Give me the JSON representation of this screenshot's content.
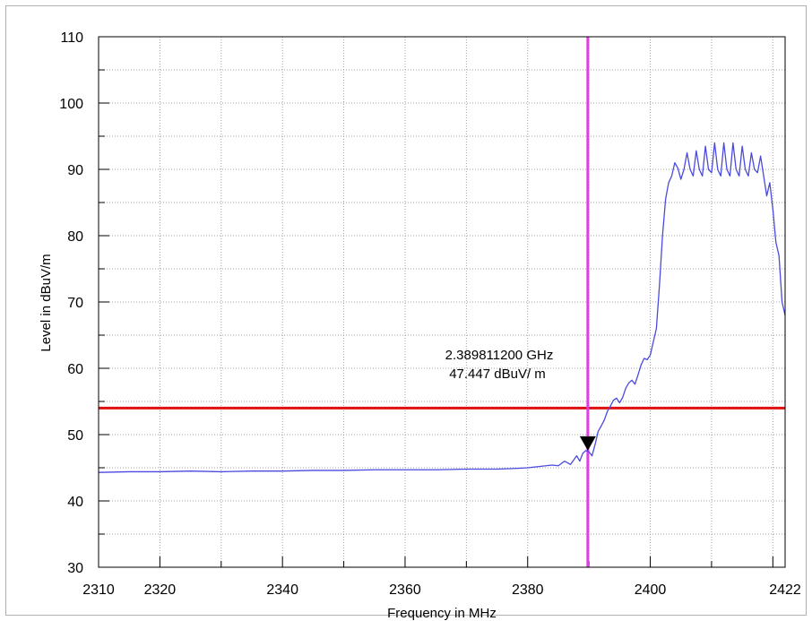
{
  "chart_data": {
    "type": "line",
    "title": "",
    "xlabel": "Frequency in MHz",
    "ylabel": "Level in dBuV/m",
    "xlim": [
      2310,
      2422
    ],
    "ylim": [
      30,
      110
    ],
    "grid": true,
    "x_ticks": [
      2310,
      2320,
      2340,
      2360,
      2380,
      2400,
      2422
    ],
    "x_tick_labels": [
      "2310",
      "2320",
      "2340",
      "2360",
      "2380",
      "2400",
      "2422"
    ],
    "y_ticks": [
      30,
      40,
      50,
      60,
      70,
      80,
      90,
      100,
      110
    ],
    "y_tick_labels": [
      "30",
      "40",
      "50",
      "60",
      "70",
      "80",
      "90",
      "100",
      "110"
    ],
    "limit_line": {
      "y": 54,
      "color": "#e01010"
    },
    "marker_line": {
      "x": 2389.8112,
      "color": "#e040e0"
    },
    "marker": {
      "x": 2389.8112,
      "y": 47.447,
      "label_line1": "2.389811200 GHz",
      "label_line2": "47.447 dBuV/ m"
    },
    "series": [
      {
        "color": "#4a4ae0",
        "x": [
          2310,
          2315,
          2320,
          2325,
          2330,
          2335,
          2340,
          2345,
          2350,
          2355,
          2360,
          2365,
          2370,
          2375,
          2378,
          2380,
          2382,
          2384,
          2385,
          2386,
          2387,
          2388,
          2388.5,
          2389,
          2389.5,
          2390,
          2390.5,
          2391,
          2391.5,
          2392,
          2392.5,
          2393,
          2393.5,
          2394,
          2394.5,
          2395,
          2395.5,
          2396,
          2396.5,
          2397,
          2397.5,
          2398,
          2398.5,
          2399,
          2399.5,
          2400,
          2400.5,
          2401,
          2401.5,
          2402,
          2402.5,
          2403,
          2403.5,
          2404,
          2404.5,
          2405,
          2405.5,
          2406,
          2406.5,
          2407,
          2407.5,
          2408,
          2408.5,
          2409,
          2409.5,
          2410,
          2410.5,
          2411,
          2411.5,
          2412,
          2412.5,
          2413,
          2413.5,
          2414,
          2414.5,
          2415,
          2415.5,
          2416,
          2416.5,
          2417,
          2417.5,
          2418,
          2418.5,
          2419,
          2419.5,
          2420,
          2420.5,
          2421,
          2421.5,
          2422
        ],
        "y": [
          44.3,
          44.4,
          44.4,
          44.5,
          44.4,
          44.5,
          44.5,
          44.6,
          44.6,
          44.7,
          44.7,
          44.7,
          44.8,
          44.8,
          44.9,
          45.0,
          45.2,
          45.4,
          45.3,
          46.0,
          45.5,
          46.8,
          46.0,
          47.2,
          47.6,
          47.4,
          46.8,
          48.5,
          50.5,
          51.3,
          52.2,
          53.5,
          54.3,
          55.2,
          55.5,
          54.8,
          55.6,
          57.0,
          57.8,
          58.2,
          57.6,
          59.0,
          60.5,
          61.5,
          61.3,
          62.0,
          64.0,
          66.0,
          72.5,
          80.0,
          85.5,
          88.0,
          89.0,
          91.0,
          90.2,
          88.5,
          90.0,
          92.5,
          90.0,
          89.0,
          92.8,
          90.0,
          89.0,
          93.5,
          90.0,
          89.5,
          94.0,
          90.0,
          89.0,
          94.0,
          90.0,
          89.0,
          94.0,
          90.0,
          89.0,
          93.5,
          90.0,
          89.0,
          92.5,
          90.0,
          89.5,
          92.0,
          89.0,
          86.0,
          88.0,
          84.0,
          79.0,
          77.0,
          70.0,
          68.0
        ]
      }
    ]
  }
}
